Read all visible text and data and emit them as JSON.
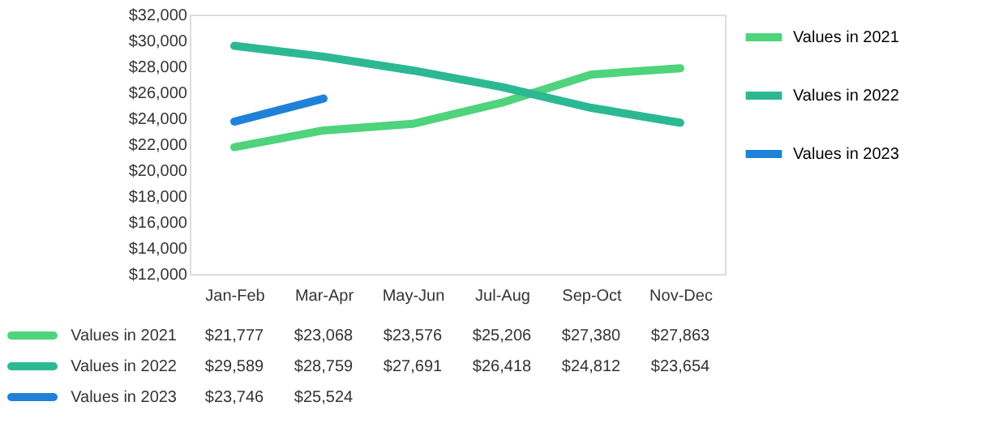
{
  "chart_data": {
    "type": "line",
    "categories": [
      "Jan-Feb",
      "Mar-Apr",
      "May-Jun",
      "Jul-Aug",
      "Sep-Oct",
      "Nov-Dec"
    ],
    "series": [
      {
        "name": "Values in 2021",
        "color": "#4fd37c",
        "values": [
          21777,
          23068,
          23576,
          25206,
          27380,
          27863
        ],
        "value_labels": [
          "$21,777",
          "$23,068",
          "$23,576",
          "$25,206",
          "$27,380",
          "$27,863"
        ]
      },
      {
        "name": "Values in 2022",
        "color": "#2db894",
        "values": [
          29589,
          28759,
          27691,
          26418,
          24812,
          23654
        ],
        "value_labels": [
          "$29,589",
          "$28,759",
          "$27,691",
          "$26,418",
          "$24,812",
          "$23,654"
        ]
      },
      {
        "name": "Values in 2023",
        "color": "#1f82d8",
        "values": [
          23746,
          25524,
          null,
          null,
          null,
          null
        ],
        "value_labels": [
          "$23,746",
          "$25,524",
          null,
          null,
          null,
          null
        ]
      }
    ],
    "ylim": [
      12000,
      32000
    ],
    "yticks": [
      {
        "value": 12000,
        "label": "$12,000"
      },
      {
        "value": 14000,
        "label": "$14,000"
      },
      {
        "value": 16000,
        "label": "$16,000"
      },
      {
        "value": 18000,
        "label": "$18,000"
      },
      {
        "value": 20000,
        "label": "$20,000"
      },
      {
        "value": 22000,
        "label": "$22,000"
      },
      {
        "value": 24000,
        "label": "$24,000"
      },
      {
        "value": 26000,
        "label": "$26,000"
      },
      {
        "value": 28000,
        "label": "$28,000"
      },
      {
        "value": 30000,
        "label": "$30,000"
      },
      {
        "value": 32000,
        "label": "$32,000"
      }
    ],
    "legend": "right",
    "line_style": "solid"
  }
}
